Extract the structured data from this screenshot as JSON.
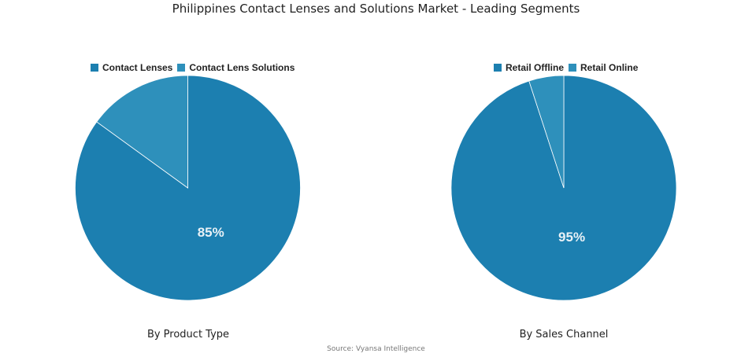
{
  "title": "Philippines Contact Lenses and Solutions Market - Leading Segments",
  "source": "Source: Vyansa Intelligence",
  "chart_data": [
    {
      "type": "pie",
      "subtitle": "By Product Type",
      "categories": [
        "Contact Lenses",
        "Contact Lens Solutions"
      ],
      "values": [
        85,
        15
      ],
      "colors": [
        "#1c7fb0",
        "#2e90bb"
      ],
      "labels": [
        "85%",
        ""
      ],
      "legend_position": "top"
    },
    {
      "type": "pie",
      "subtitle": "By Sales Channel",
      "categories": [
        "Retail Offline",
        "Retail Online"
      ],
      "values": [
        95,
        5
      ],
      "colors": [
        "#1c7fb0",
        "#2e90bb"
      ],
      "labels": [
        "95%",
        ""
      ],
      "legend_position": "top"
    }
  ]
}
